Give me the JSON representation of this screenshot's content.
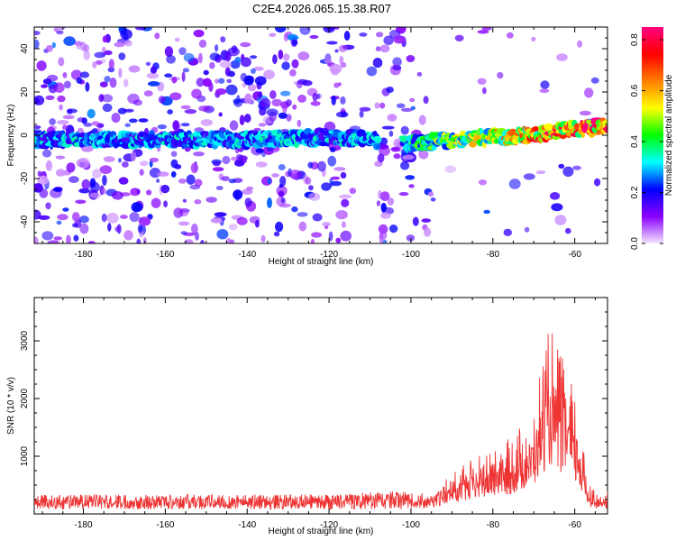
{
  "figure": {
    "title": "C2E4.2026.065.15.38.R07"
  },
  "chart_data": [
    {
      "type": "heatmap",
      "panel": "spectrogram",
      "xlabel": "Height of straight line (km)",
      "ylabel": "Frequency (Hz)",
      "xlim": [
        -192,
        -52
      ],
      "ylim": [
        -50,
        50
      ],
      "x_ticks": [
        -180,
        -160,
        -140,
        -120,
        -100,
        -80,
        -60
      ],
      "x_tick_labels": [
        "-180",
        "-160",
        "-140",
        "-120",
        "-100",
        "-80",
        "-60"
      ],
      "y_ticks": [
        -40,
        -20,
        0,
        20,
        40
      ],
      "y_tick_labels": [
        "-40",
        "-20",
        "0",
        "20",
        "40"
      ],
      "colorbar": {
        "label": "Normalized spectral amplitude",
        "range": [
          0.0,
          0.85
        ],
        "ticks": [
          0.0,
          0.2,
          0.4,
          0.6,
          0.8
        ],
        "tick_labels": [
          "0.0",
          "0.2",
          "0.4",
          "0.6",
          "0.8"
        ],
        "colors": [
          "#f4e6ff",
          "#8a00ff",
          "#0000ff",
          "#00ffff",
          "#00ff00",
          "#ffff00",
          "#ff7f00",
          "#ff0000",
          "#ff0080"
        ]
      },
      "ridge": {
        "description_points_x": [
          -192,
          -180,
          -160,
          -140,
          -120,
          -110,
          -100,
          -90,
          -80,
          -70,
          -60,
          -52
        ],
        "description_points_freq": [
          -2,
          -2,
          -2,
          -2,
          -1,
          -2,
          -4,
          -2,
          -1,
          0,
          3,
          4
        ],
        "peak_amplitude": 0.85
      },
      "noise_gap_x": [
        -108,
        -102
      ]
    },
    {
      "type": "line",
      "panel": "snr",
      "xlabel": "Height of straight line (km)",
      "ylabel": "SNR (10 * v/v)",
      "xlim": [
        -192,
        -52
      ],
      "ylim": [
        0,
        3750
      ],
      "x_ticks": [
        -180,
        -160,
        -140,
        -120,
        -100,
        -80,
        -60
      ],
      "x_tick_labels": [
        "-180",
        "-160",
        "-140",
        "-120",
        "-100",
        "-80",
        "-60"
      ],
      "y_ticks": [
        1000,
        2000,
        3000
      ],
      "y_tick_labels": [
        "1000",
        "2000",
        "3000"
      ],
      "series": [
        {
          "name": "SNR",
          "color": "#ee3333",
          "envelope_x": [
            -192,
            -180,
            -160,
            -140,
            -120,
            -105,
            -100,
            -95,
            -90,
            -85,
            -80,
            -75,
            -70,
            -67,
            -65,
            -63,
            -61,
            -59,
            -57,
            -55,
            -52
          ],
          "envelope_y": [
            200,
            200,
            200,
            200,
            200,
            250,
            260,
            450,
            700,
            950,
            1150,
            1350,
            1900,
            3100,
            3250,
            2700,
            2350,
            1700,
            650,
            400,
            300
          ]
        }
      ]
    }
  ]
}
